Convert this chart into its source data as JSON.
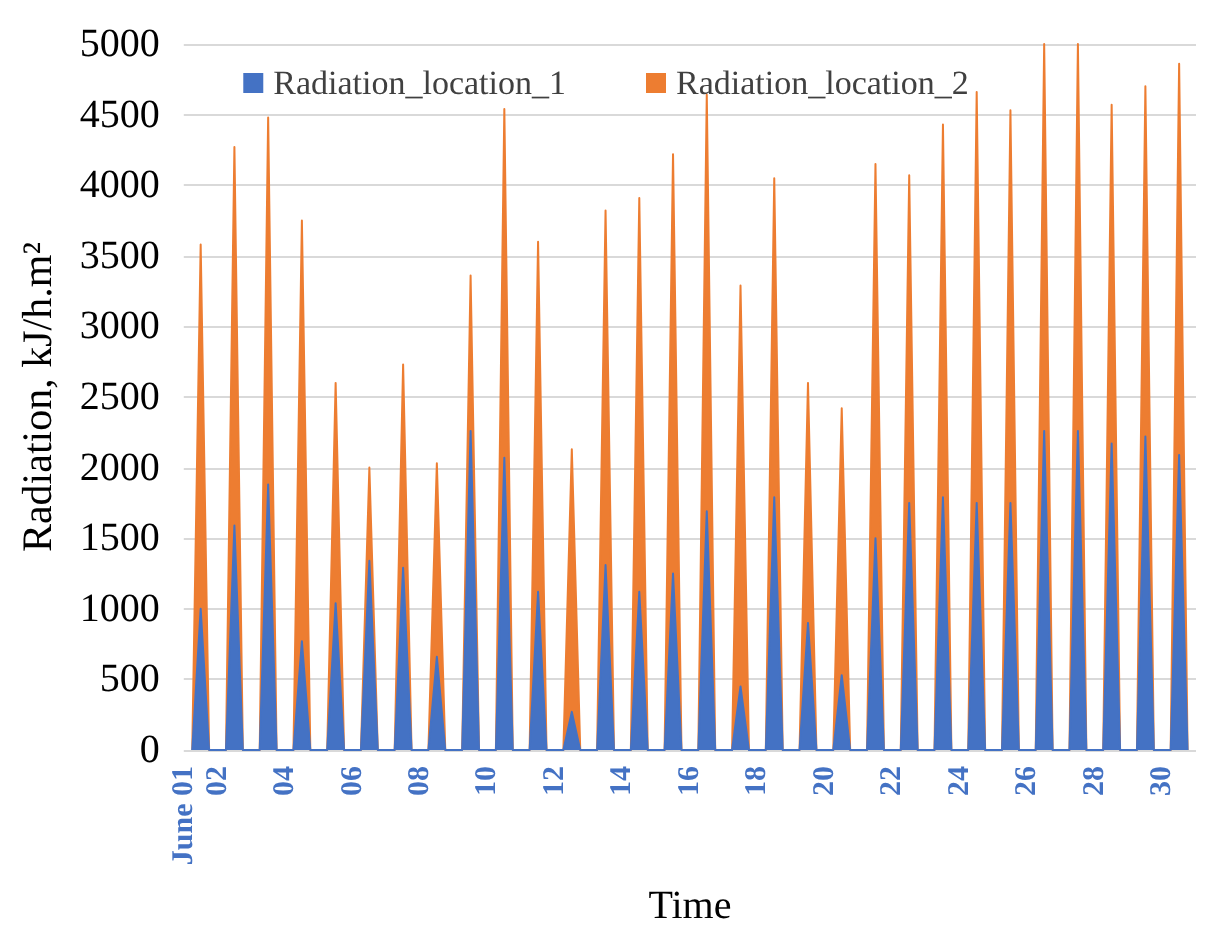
{
  "chart_data": {
    "type": "area",
    "xlabel": "Time",
    "ylabel": "Radiation, kJ/h.m²",
    "x": [
      1.25,
      1.5,
      1.75,
      2.25,
      2.5,
      2.75,
      3.25,
      3.5,
      3.75,
      4.25,
      4.5,
      4.75,
      5.25,
      5.5,
      5.75,
      6.25,
      6.5,
      6.75,
      7.25,
      7.5,
      7.75,
      8.25,
      8.5,
      8.75,
      9.25,
      9.5,
      9.75,
      10.25,
      10.5,
      10.75,
      11.25,
      11.5,
      11.75,
      12.25,
      12.5,
      12.75,
      13.25,
      13.5,
      13.75,
      14.25,
      14.5,
      14.75,
      15.25,
      15.5,
      15.75,
      16.25,
      16.5,
      16.75,
      17.25,
      17.5,
      17.75,
      18.25,
      18.5,
      18.75,
      19.25,
      19.5,
      19.75,
      20.25,
      20.5,
      20.75,
      21.25,
      21.5,
      21.75,
      22.25,
      22.5,
      22.75,
      23.25,
      23.5,
      23.75,
      24.25,
      24.5,
      24.75,
      25.25,
      25.5,
      25.75,
      26.25,
      26.5,
      26.75,
      27.25,
      27.5,
      27.75,
      28.25,
      28.5,
      28.75,
      29.25,
      29.5,
      29.75,
      30.25,
      30.5,
      30.75
    ],
    "series": [
      {
        "name": "Radiation_location_1",
        "color": "#4472c4",
        "values": [
          0,
          1000,
          0,
          0,
          1590,
          0,
          0,
          1880,
          0,
          0,
          770,
          0,
          0,
          1040,
          0,
          0,
          1340,
          0,
          0,
          1290,
          0,
          0,
          660,
          0,
          0,
          2260,
          0,
          0,
          2070,
          0,
          0,
          1120,
          0,
          0,
          270,
          0,
          0,
          1310,
          0,
          0,
          1120,
          0,
          0,
          1250,
          0,
          0,
          1690,
          0,
          0,
          450,
          0,
          0,
          1790,
          0,
          0,
          900,
          0,
          0,
          530,
          0,
          0,
          1500,
          0,
          0,
          1750,
          0,
          0,
          1790,
          0,
          0,
          1750,
          0,
          0,
          1750,
          0,
          0,
          2260,
          0,
          0,
          2260,
          0,
          0,
          2170,
          0,
          0,
          2220,
          0,
          0,
          2090,
          0
        ]
      },
      {
        "name": "Radiation_location_2",
        "color": "#ed7d31",
        "values": [
          0,
          3580,
          0,
          0,
          4270,
          0,
          0,
          4480,
          0,
          0,
          3750,
          0,
          0,
          2600,
          0,
          0,
          2000,
          0,
          0,
          2730,
          0,
          0,
          2030,
          0,
          0,
          3360,
          0,
          0,
          4540,
          0,
          0,
          3600,
          0,
          0,
          2130,
          0,
          0,
          3820,
          0,
          0,
          3910,
          0,
          0,
          4220,
          0,
          0,
          4640,
          0,
          0,
          3290,
          0,
          0,
          4050,
          0,
          0,
          2600,
          0,
          0,
          2420,
          0,
          0,
          4150,
          0,
          0,
          4070,
          0,
          0,
          4430,
          0,
          0,
          4660,
          0,
          0,
          4530,
          0,
          0,
          5000,
          0,
          0,
          5000,
          0,
          0,
          4570,
          0,
          0,
          4700,
          0,
          0,
          4860,
          0
        ]
      }
    ],
    "xlim": [
      1,
      31
    ],
    "xticks": [
      {
        "value": 1,
        "label": "June 01"
      },
      {
        "value": 2,
        "label": "02"
      },
      {
        "value": 4,
        "label": "04"
      },
      {
        "value": 6,
        "label": "06"
      },
      {
        "value": 8,
        "label": "08"
      },
      {
        "value": 10,
        "label": "10"
      },
      {
        "value": 12,
        "label": "12"
      },
      {
        "value": 14,
        "label": "14"
      },
      {
        "value": 16,
        "label": "16"
      },
      {
        "value": 18,
        "label": "18"
      },
      {
        "value": 20,
        "label": "20"
      },
      {
        "value": 22,
        "label": "22"
      },
      {
        "value": 24,
        "label": "24"
      },
      {
        "value": 26,
        "label": "26"
      },
      {
        "value": 28,
        "label": "28"
      },
      {
        "value": 30,
        "label": "30"
      }
    ],
    "ylim": [
      0,
      5000
    ],
    "yticks": [
      0,
      500,
      1000,
      1500,
      2000,
      2500,
      3000,
      3500,
      4000,
      4500,
      5000
    ],
    "grid": "y",
    "legend": "top",
    "marker": "none",
    "line_style": "solid"
  }
}
